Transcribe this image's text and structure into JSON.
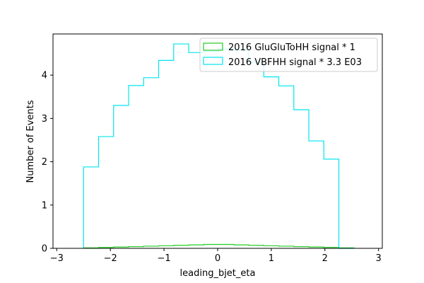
{
  "chart_data": {
    "type": "histogram-step",
    "xlabel": "leading_bjet_eta",
    "ylabel": "Number of Events",
    "xlim": [
      -3.07,
      3.07
    ],
    "ylim": [
      0,
      4.95
    ],
    "xticks": [
      -3,
      -2,
      -1,
      0,
      1,
      2,
      3
    ],
    "yticks": [
      0,
      1,
      2,
      3,
      4
    ],
    "xtick_labels": [
      "−3",
      "−2",
      "−1",
      "0",
      "1",
      "2",
      "3"
    ],
    "ytick_labels": [
      "0",
      "1",
      "2",
      "3",
      "4"
    ],
    "grid": false,
    "legend_position": "upper-right",
    "bin_edges": [
      -2.5,
      -2.22,
      -1.94,
      -1.66,
      -1.38,
      -1.1,
      -0.82,
      -0.54,
      -0.26,
      0.02,
      0.3,
      0.58,
      0.86,
      1.14,
      1.42,
      1.7,
      1.98,
      2.26,
      2.54
    ],
    "series": [
      {
        "name": "2016 GluGluToHH signal * 1",
        "color": "#22cc22",
        "values": [
          0.01,
          0.02,
          0.03,
          0.04,
          0.05,
          0.06,
          0.07,
          0.08,
          0.09,
          0.09,
          0.08,
          0.07,
          0.06,
          0.05,
          0.04,
          0.03,
          0.02,
          0.01
        ]
      },
      {
        "name": "2016 VBFHH signal * 3.3 E03",
        "color": "#00e5ee",
        "values": [
          1.88,
          2.58,
          3.3,
          3.76,
          3.94,
          4.34,
          4.72,
          4.52,
          4.55,
          4.6,
          4.58,
          4.3,
          3.96,
          3.75,
          3.2,
          2.48,
          2.06,
          0.0
        ]
      }
    ]
  }
}
